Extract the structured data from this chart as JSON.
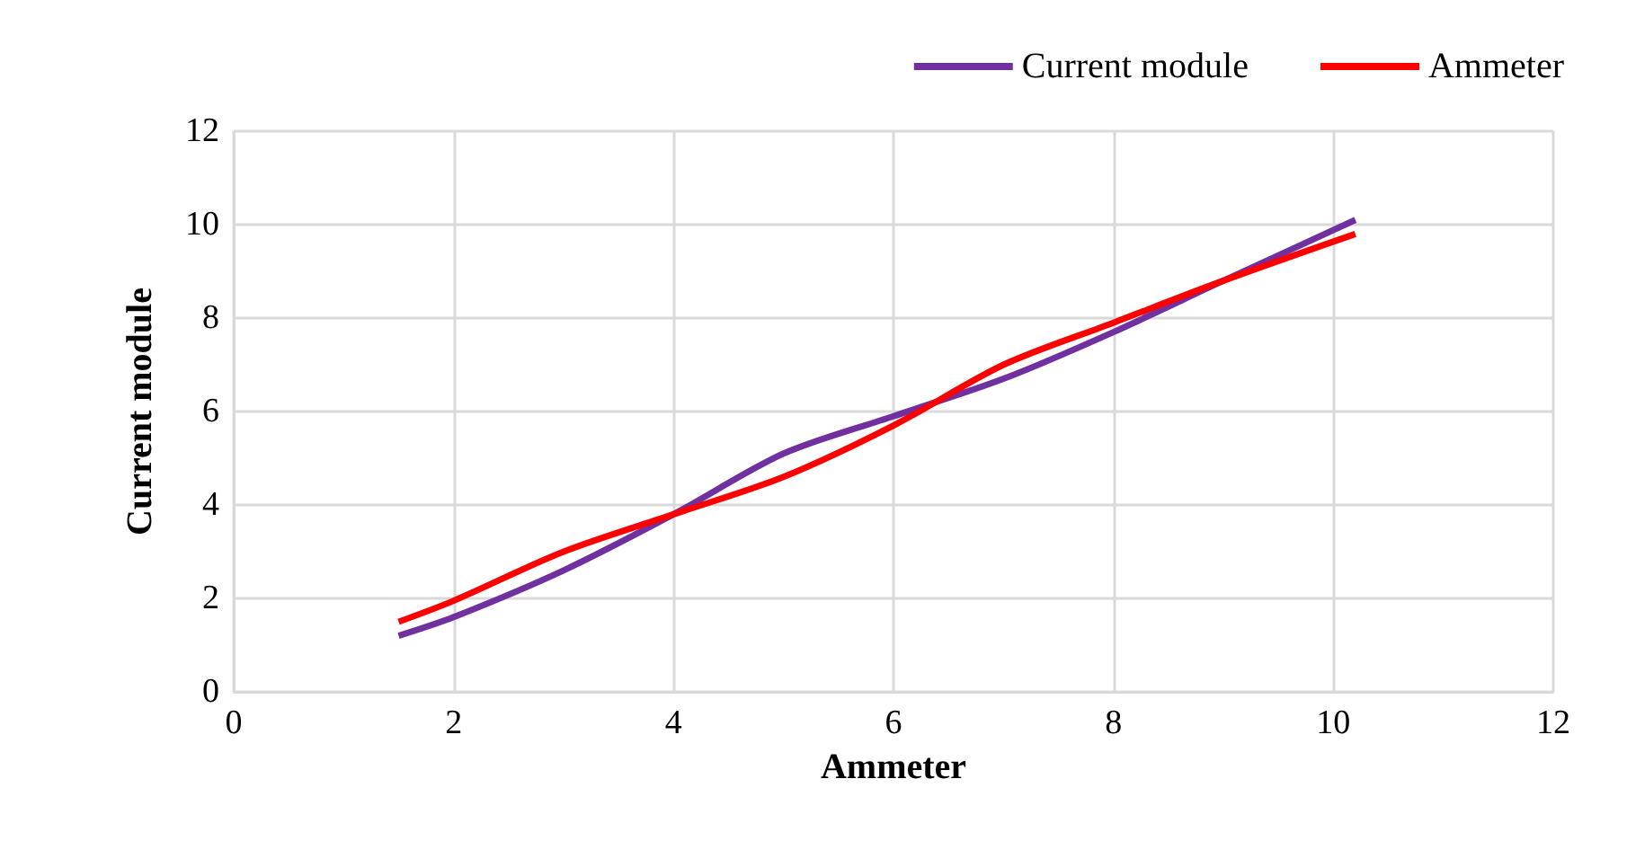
{
  "chart_data": {
    "type": "line",
    "xlabel": "Ammeter",
    "ylabel": "Current module",
    "series": [
      {
        "name": "Current module",
        "color": "#7030a0",
        "x": [
          1.5,
          2,
          3,
          4,
          5,
          6,
          7,
          8,
          9,
          10.2
        ],
        "values": [
          1.2,
          1.6,
          2.6,
          3.8,
          5.1,
          5.9,
          6.7,
          7.7,
          8.8,
          10.1
        ]
      },
      {
        "name": "Ammeter",
        "color": "#ff0000",
        "x": [
          1.5,
          2,
          3,
          4,
          5,
          6,
          7,
          8,
          9,
          10.2
        ],
        "values": [
          1.5,
          1.95,
          3.0,
          3.8,
          4.6,
          5.7,
          7.0,
          7.9,
          8.8,
          9.8
        ]
      }
    ],
    "xlim": [
      0,
      12
    ],
    "xticks": [
      0,
      2,
      4,
      6,
      8,
      10,
      12
    ],
    "ylim": [
      0,
      12
    ],
    "yticks": [
      0,
      2,
      4,
      6,
      8,
      10,
      12
    ],
    "grid": true,
    "legend": "top right",
    "marker": "none",
    "line_style": "solid"
  }
}
